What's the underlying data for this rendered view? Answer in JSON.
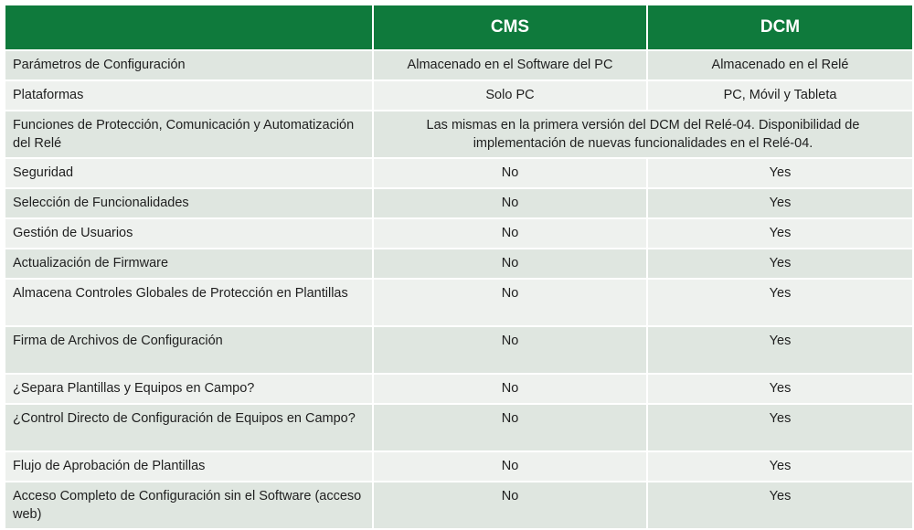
{
  "header": {
    "feature_col": "",
    "col_cms": "CMS",
    "col_dcm": "DCM"
  },
  "rows": [
    {
      "feature": "Parámetros de Configuración",
      "cms": "Almacenado en el Software del PC",
      "dcm": "Almacenado en el Relé"
    },
    {
      "feature": "Plataformas",
      "cms": "Solo PC",
      "dcm": "PC, Móvil y Tableta"
    },
    {
      "feature": "Funciones de Protección, Comunicación y Automatización del Relé",
      "merged": "Las mismas en la primera versión del DCM del Relé-04. Disponibilidad de implementación de nuevas funcionalidades en el Relé-04."
    },
    {
      "feature": "Seguridad",
      "cms": "No",
      "dcm": "Yes"
    },
    {
      "feature": "Selección de Funcionalidades",
      "cms": "No",
      "dcm": "Yes"
    },
    {
      "feature": "Gestión de Usuarios",
      "cms": "No",
      "dcm": "Yes"
    },
    {
      "feature": "Actualización de Firmware",
      "cms": "No",
      "dcm": "Yes"
    },
    {
      "feature": "Almacena Controles Globales de Protección en Plantillas",
      "cms": "No",
      "dcm": "Yes"
    },
    {
      "feature": "Firma de Archivos de Configuración",
      "cms": "No",
      "dcm": "Yes"
    },
    {
      "feature": "¿Separa Plantillas y Equipos en Campo?",
      "cms": "No",
      "dcm": "Yes"
    },
    {
      "feature": "¿Control Directo de Configuración de Equipos en Campo?",
      "cms": "No",
      "dcm": "Yes"
    },
    {
      "feature": "Flujo de Aprobación de Plantillas",
      "cms": "No",
      "dcm": "Yes"
    },
    {
      "feature": "Acceso Completo de Configuración sin el Software (acceso web)",
      "cms": "No",
      "dcm": "Yes"
    }
  ],
  "colors": {
    "header_bg": "#0f7a3c",
    "header_text": "#ffffff",
    "row_odd_bg": "#dfe6e0",
    "row_even_bg": "#eef1ee"
  }
}
